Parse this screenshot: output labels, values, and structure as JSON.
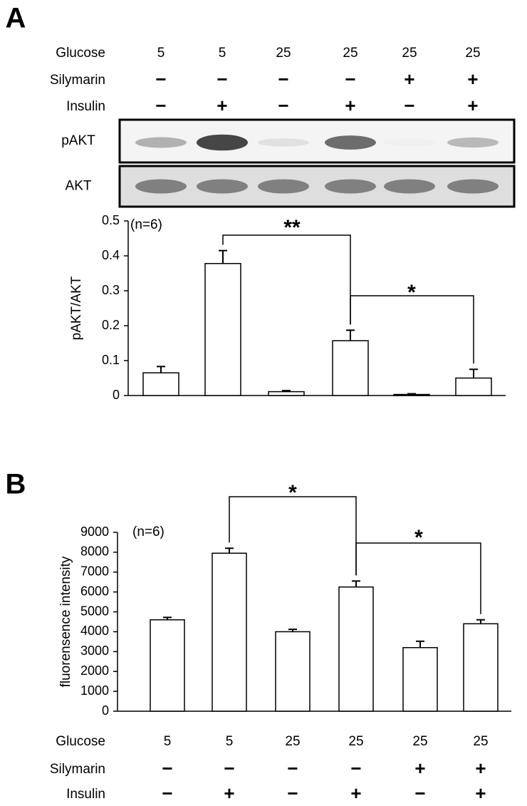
{
  "chart_data": [
    {
      "type": "bar",
      "panel": "A",
      "conditions": [
        {
          "name": "Glucose",
          "values": [
            "5",
            "5",
            "25",
            "25",
            "25",
            "25"
          ]
        },
        {
          "name": "Silymarin",
          "values": [
            "−",
            "−",
            "−",
            "−",
            "+",
            "+"
          ]
        },
        {
          "name": "Insulin",
          "values": [
            "−",
            "+",
            "−",
            "+",
            "−",
            "+"
          ]
        }
      ],
      "blots": [
        "pAKT",
        "AKT"
      ],
      "ylabel": "pAKT/AKT",
      "annotation": "(n=6)",
      "values": [
        0.065,
        0.378,
        0.011,
        0.157,
        0.003,
        0.05
      ],
      "errors": [
        0.018,
        0.037,
        0.003,
        0.03,
        0.002,
        0.025
      ],
      "ylim": [
        0,
        0.5
      ],
      "yticks": [
        0,
        0.1,
        0.2,
        0.3,
        0.4,
        0.5
      ],
      "significance": [
        "**",
        "*"
      ],
      "color": "#ffffff"
    },
    {
      "type": "bar",
      "panel": "B",
      "conditions": [
        {
          "name": "Glucose",
          "values": [
            "5",
            "5",
            "25",
            "25",
            "25",
            "25"
          ]
        },
        {
          "name": "Silymarin",
          "values": [
            "−",
            "−",
            "−",
            "−",
            "+",
            "+"
          ]
        },
        {
          "name": "Insulin",
          "values": [
            "−",
            "+",
            "−",
            "+",
            "−",
            "+"
          ]
        }
      ],
      "ylabel": "fluorensence intensity",
      "annotation": "(n=6)",
      "values": [
        4600,
        7950,
        4000,
        6250,
        3200,
        4400
      ],
      "errors": [
        120,
        250,
        120,
        300,
        320,
        200
      ],
      "ylim": [
        0,
        9000
      ],
      "yticks": [
        0,
        1000,
        2000,
        3000,
        4000,
        5000,
        6000,
        7000,
        8000,
        9000
      ],
      "significance": [
        "*",
        "*"
      ],
      "color": "#ffffff"
    }
  ]
}
